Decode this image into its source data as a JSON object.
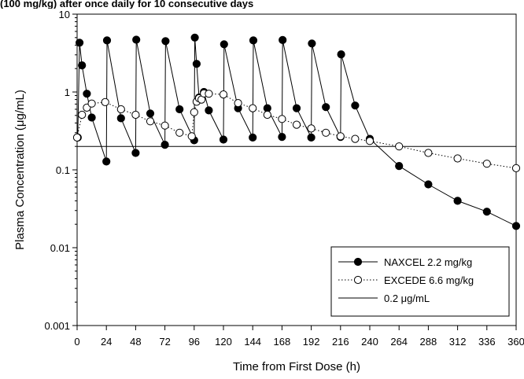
{
  "caption_fragment": "(100 mg/kg) after once daily for 10 consecutive days",
  "chart_data": {
    "type": "scatter",
    "xlabel": "Time from First Dose (h)",
    "ylabel": "Plasma Concentration (μg/mL)",
    "xlim": [
      0,
      360
    ],
    "ylim": [
      0.001,
      10
    ],
    "yscale": "log",
    "x_ticks": [
      "0",
      "24",
      "48",
      "72",
      "96",
      "120",
      "144",
      "168",
      "192",
      "216",
      "240",
      "264",
      "288",
      "312",
      "336",
      "360"
    ],
    "y_ticks": [
      "0.001",
      "0.01",
      "0.1",
      "1",
      "10"
    ],
    "legend_position": "lower-right",
    "series": [
      {
        "name": "NAXCEL 2.2 mg/kg",
        "marker": "filled-circle",
        "line": "solid",
        "x": [
          0.5,
          2,
          4,
          8,
          12,
          24,
          24.5,
          36,
          48,
          48.5,
          60,
          72,
          72.5,
          84,
          96,
          96.5,
          98,
          100,
          104,
          108,
          120,
          120.5,
          132,
          144,
          144.5,
          156,
          168,
          168.5,
          180,
          192,
          192.5,
          204,
          216,
          216.5,
          228,
          240,
          264,
          288,
          312,
          336,
          360
        ],
        "y": [
          0.26,
          4.3,
          2.2,
          0.95,
          0.47,
          0.128,
          4.6,
          0.46,
          0.165,
          4.7,
          0.53,
          0.21,
          4.5,
          0.6,
          0.24,
          5.0,
          2.3,
          0.85,
          1.0,
          0.58,
          0.245,
          4.1,
          0.62,
          0.26,
          4.6,
          0.62,
          0.265,
          4.65,
          0.62,
          0.26,
          4.2,
          0.64,
          0.265,
          3.05,
          0.67,
          0.25,
          0.112,
          0.065,
          0.04,
          0.029,
          0.019
        ]
      },
      {
        "name": "EXCEDE 6.6 mg/kg",
        "marker": "open-circle",
        "line": "dotted",
        "x": [
          0,
          4,
          8,
          12,
          23,
          36,
          48,
          60,
          72,
          84,
          94,
          96,
          98,
          100,
          102,
          104,
          108,
          120,
          132,
          144,
          156,
          168,
          180,
          192,
          204,
          216,
          228,
          240,
          264,
          288,
          312,
          336,
          360
        ],
        "y": [
          0.26,
          0.51,
          0.63,
          0.71,
          0.74,
          0.6,
          0.51,
          0.42,
          0.37,
          0.3,
          0.27,
          0.55,
          0.75,
          0.83,
          0.8,
          0.96,
          0.95,
          0.93,
          0.72,
          0.62,
          0.51,
          0.45,
          0.38,
          0.34,
          0.3,
          0.27,
          0.25,
          0.235,
          0.2,
          0.165,
          0.14,
          0.12,
          0.105
        ]
      },
      {
        "name": "0.2 μg/mL",
        "marker": "none",
        "line": "solid",
        "x": [
          0,
          360
        ],
        "y": [
          0.2,
          0.2
        ]
      }
    ]
  }
}
